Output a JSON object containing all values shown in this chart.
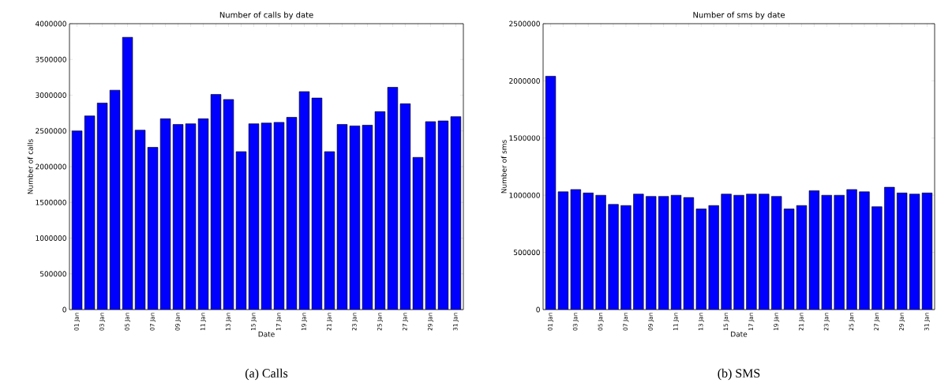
{
  "chart_data": [
    {
      "type": "bar",
      "title": "Number of calls by date",
      "xlabel": "Date",
      "ylabel": "Number of calls",
      "color": "#0000ff",
      "categories": [
        "01 Jan",
        null,
        "03 Jan",
        null,
        "05 Jan",
        null,
        "07 Jan",
        null,
        "09 Jan",
        null,
        "11 Jan",
        null,
        "13 Jan",
        null,
        "15 Jan",
        null,
        "17 Jan",
        null,
        "19 Jan",
        null,
        "21 Jan",
        null,
        "23 Jan",
        null,
        "25 Jan",
        null,
        "27 Jan",
        null,
        "29 Jan",
        null,
        "31 Jan"
      ],
      "values": [
        2500000,
        2710000,
        2890000,
        3070000,
        3810000,
        2510000,
        2270000,
        2670000,
        2590000,
        2600000,
        2670000,
        3010000,
        2940000,
        2210000,
        2600000,
        2610000,
        2620000,
        2690000,
        3050000,
        2960000,
        2210000,
        2590000,
        2570000,
        2580000,
        2770000,
        3110000,
        2880000,
        2130000,
        2630000,
        2640000,
        2700000
      ],
      "ylim": [
        0,
        4000000
      ],
      "yticks": [
        0,
        500000,
        1000000,
        1500000,
        2000000,
        2500000,
        3000000,
        3500000,
        4000000
      ],
      "annotations": [
        "(a) Calls"
      ]
    },
    {
      "type": "bar",
      "title": "Number of sms by date",
      "xlabel": "Date",
      "ylabel": "Number of sms",
      "color": "#0000ff",
      "categories": [
        "01 Jan",
        null,
        "03 Jan",
        null,
        "05 Jan",
        null,
        "07 Jan",
        null,
        "09 Jan",
        null,
        "11 Jan",
        null,
        "13 Jan",
        null,
        "15 Jan",
        null,
        "17 Jan",
        null,
        "19 Jan",
        null,
        "21 Jan",
        null,
        "23 Jan",
        null,
        "25 Jan",
        null,
        "27 Jan",
        null,
        "29 Jan",
        null,
        "31 Jan"
      ],
      "values": [
        2040000,
        1030000,
        1050000,
        1020000,
        1000000,
        920000,
        910000,
        1010000,
        990000,
        990000,
        1000000,
        980000,
        880000,
        910000,
        1010000,
        1000000,
        1010000,
        1010000,
        990000,
        880000,
        910000,
        1040000,
        1000000,
        1000000,
        1050000,
        1030000,
        900000,
        1070000,
        1020000,
        1010000,
        1020000
      ],
      "ylim": [
        0,
        2500000
      ],
      "yticks": [
        0,
        500000,
        1000000,
        1500000,
        2000000,
        2500000
      ],
      "annotations": [
        "(b) SMS"
      ]
    }
  ]
}
